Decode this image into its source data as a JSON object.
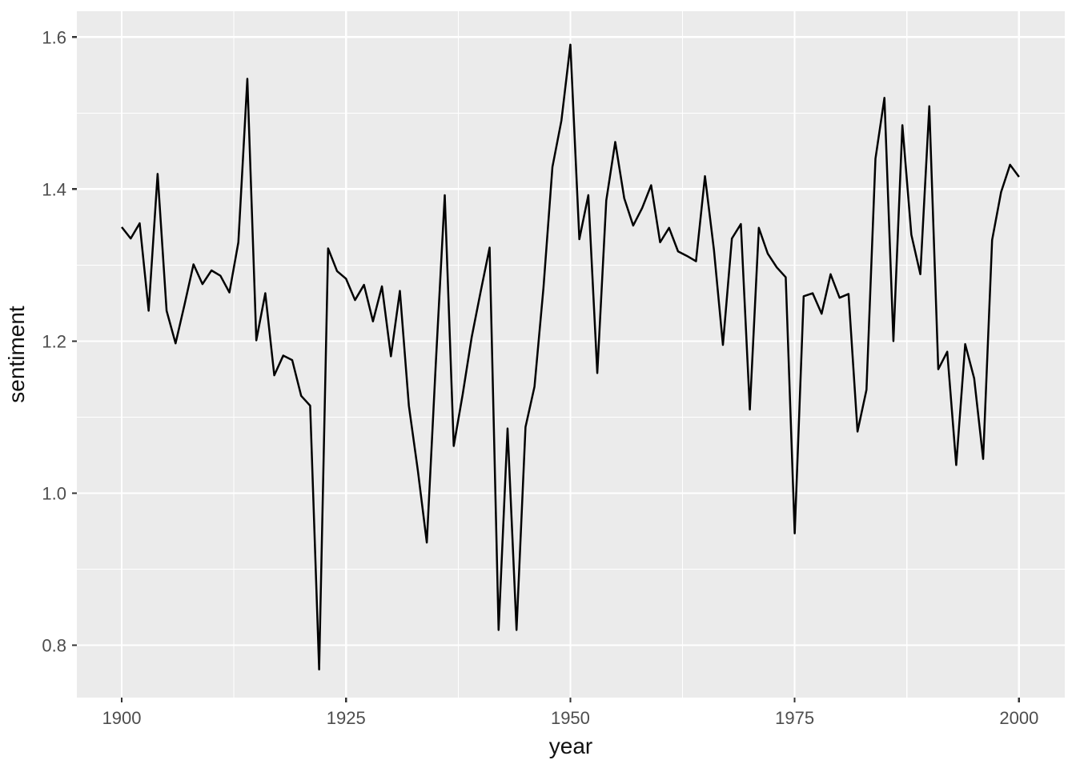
{
  "chart_data": {
    "type": "line",
    "title": "",
    "xlabel": "year",
    "ylabel": "sentiment",
    "x_tick_labels": [
      "1900",
      "1925",
      "1950",
      "1975",
      "2000"
    ],
    "x_ticks": [
      1900,
      1925,
      1950,
      1975,
      2000
    ],
    "y_tick_labels": [
      "0.8",
      "1.0",
      "1.2",
      "1.4",
      "1.6"
    ],
    "y_ticks": [
      0.8,
      1.0,
      1.2,
      1.4,
      1.6
    ],
    "x_minor_gridlines": [
      1912.5,
      1937.5,
      1962.5,
      1987.5
    ],
    "y_minor_gridlines": [
      0.9,
      1.1,
      1.3,
      1.5
    ],
    "xlim": [
      1895.0,
      2005.1
    ],
    "ylim": [
      0.731,
      1.634
    ],
    "grid": true,
    "legend": false,
    "colors": {
      "panel_background": "#EBEBEB",
      "gridline": "#FFFFFF",
      "series_line": "#000000",
      "tick_mark": "#333333",
      "tick_label": "#4D4D4D",
      "axis_title": "#111111",
      "outer_background": "#FFFFFF"
    },
    "series": [
      {
        "name": "sentiment",
        "x": [
          1900,
          1901,
          1902,
          1903,
          1904,
          1905,
          1906,
          1907,
          1908,
          1909,
          1910,
          1911,
          1912,
          1913,
          1914,
          1915,
          1916,
          1917,
          1918,
          1919,
          1920,
          1921,
          1922,
          1923,
          1924,
          1925,
          1926,
          1927,
          1928,
          1929,
          1930,
          1931,
          1932,
          1933,
          1934,
          1935,
          1936,
          1937,
          1938,
          1939,
          1940,
          1941,
          1942,
          1943,
          1944,
          1945,
          1946,
          1947,
          1948,
          1949,
          1950,
          1951,
          1952,
          1953,
          1954,
          1955,
          1956,
          1957,
          1958,
          1959,
          1960,
          1961,
          1962,
          1963,
          1964,
          1965,
          1966,
          1967,
          1968,
          1969,
          1970,
          1971,
          1972,
          1973,
          1974,
          1975,
          1976,
          1977,
          1978,
          1979,
          1980,
          1981,
          1982,
          1983,
          1984,
          1985,
          1986,
          1987,
          1988,
          1989,
          1990,
          1991,
          1992,
          1993,
          1994,
          1995,
          1996,
          1997,
          1998,
          1999,
          2000
        ],
        "y": [
          1.35,
          1.335,
          1.355,
          1.24,
          1.42,
          1.24,
          1.197,
          1.248,
          1.301,
          1.275,
          1.293,
          1.286,
          1.264,
          1.33,
          1.545,
          1.201,
          1.263,
          1.155,
          1.181,
          1.175,
          1.128,
          1.115,
          0.768,
          1.322,
          1.292,
          1.282,
          1.254,
          1.274,
          1.226,
          1.272,
          1.18,
          1.266,
          1.115,
          1.03,
          0.935,
          1.17,
          1.392,
          1.062,
          1.13,
          1.205,
          1.265,
          1.323,
          0.82,
          1.085,
          0.82,
          1.087,
          1.14,
          1.27,
          1.429,
          1.49,
          1.59,
          1.334,
          1.392,
          1.158,
          1.385,
          1.462,
          1.388,
          1.352,
          1.375,
          1.405,
          1.33,
          1.349,
          1.318,
          1.312,
          1.305,
          1.417,
          1.32,
          1.195,
          1.335,
          1.354,
          1.11,
          1.349,
          1.315,
          1.297,
          1.284,
          0.947,
          1.259,
          1.263,
          1.236,
          1.288,
          1.257,
          1.262,
          1.081,
          1.136,
          1.44,
          1.52,
          1.2,
          1.484,
          1.34,
          1.288,
          1.509,
          1.163,
          1.186,
          1.037,
          1.196,
          1.151,
          1.045,
          1.333,
          1.396,
          1.432,
          1.416
        ]
      }
    ]
  }
}
